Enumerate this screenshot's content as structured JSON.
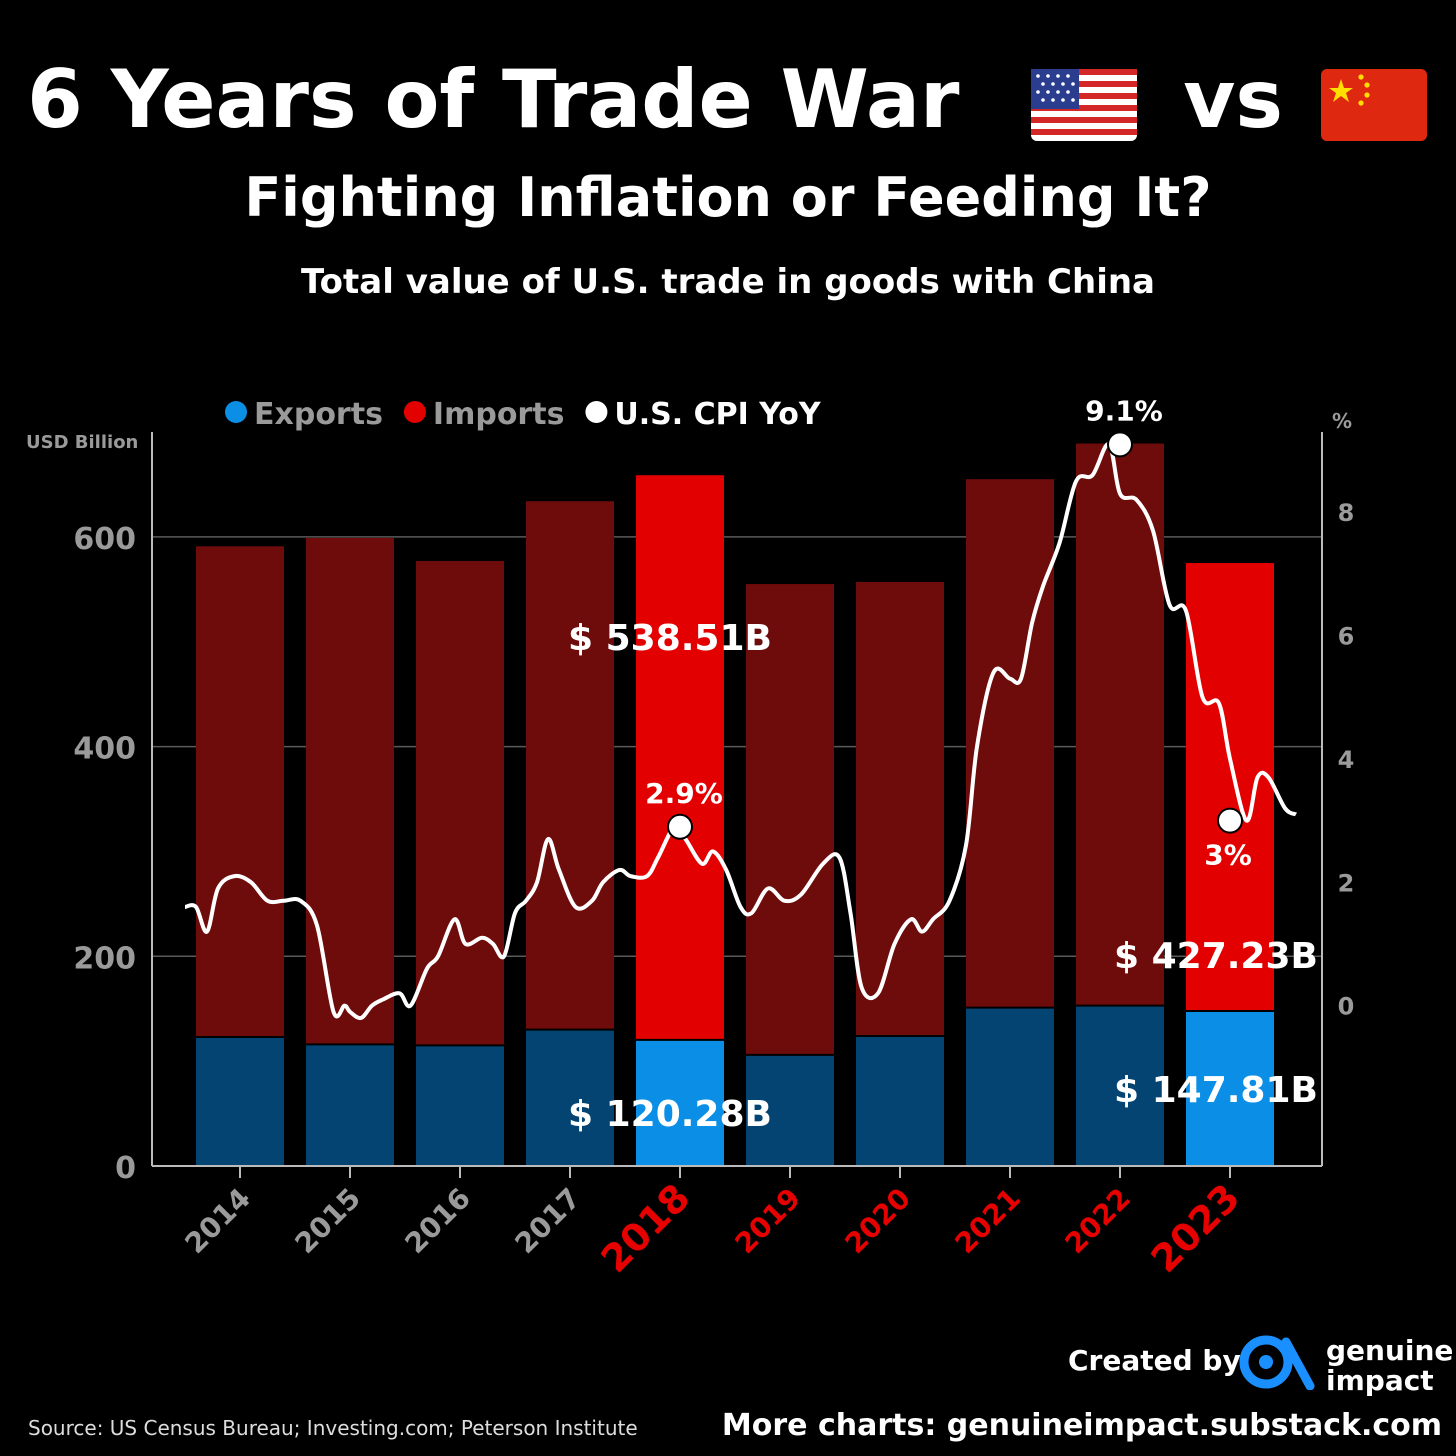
{
  "header": {
    "title": "6 Years of Trade War",
    "vs": "vs",
    "subtitle": "Fighting Inflation or Feeding It?",
    "chart_title": "Total value of U.S. trade in goods with China"
  },
  "footer": {
    "created_by": "Created by",
    "brand_line1": "genuine",
    "brand_line2": "impact",
    "source": "Source: US Census Bureau; Investing.com; Peterson Institute",
    "more_charts": "More charts: genuineimpact.substack.com"
  },
  "colors": {
    "exports_highlight": "#0a8ee6",
    "exports_dim": "#034472",
    "imports_highlight": "#e30000",
    "imports_dim": "#6e0b0b",
    "cpi_line": "#ffffff",
    "year_highlight": "#e60000",
    "year_normal": "#9a9a9a"
  },
  "chart_data": {
    "type": "bar",
    "stacked": true,
    "left_axis_label": "USD Billion",
    "right_axis_label": "%",
    "left_ticks": [
      0,
      200,
      400,
      600
    ],
    "right_ticks": [
      0,
      2,
      4,
      6,
      8
    ],
    "ylim": [
      0,
      700
    ],
    "y2lim": [
      -2.6,
      9.3
    ],
    "grid": true,
    "legend_position": "top-left",
    "legend": [
      {
        "label": "Exports",
        "color": "#0a8ee6",
        "text_color": "#9a9a9a"
      },
      {
        "label": "Imports",
        "color": "#e30000",
        "text_color": "#9a9a9a"
      },
      {
        "label": "U.S. CPI YoY",
        "color": "#ffffff",
        "text_color": "#ffffff"
      }
    ],
    "categories": [
      "2014",
      "2015",
      "2016",
      "2017",
      "2018",
      "2019",
      "2020",
      "2021",
      "2022",
      "2023"
    ],
    "category_highlight": [
      false,
      false,
      false,
      false,
      true,
      true,
      true,
      true,
      true,
      true
    ],
    "category_bold": [
      false,
      false,
      false,
      false,
      true,
      false,
      false,
      false,
      false,
      true
    ],
    "bar_highlight": [
      false,
      false,
      false,
      false,
      true,
      false,
      false,
      false,
      false,
      true
    ],
    "series": [
      {
        "name": "Exports",
        "values": [
          123,
          116,
          115,
          130,
          120.28,
          106,
          124,
          151,
          153,
          147.81
        ]
      },
      {
        "name": "Imports",
        "values": [
          468,
          483,
          462,
          504,
          538.51,
          449,
          433,
          504,
          536,
          427.23
        ]
      }
    ],
    "bar_labels": [
      {
        "year": "2018",
        "series": "Imports",
        "text": "$ 538.51B"
      },
      {
        "year": "2018",
        "series": "Exports",
        "text": "$ 120.28B"
      },
      {
        "year": "2023",
        "series": "Imports",
        "text": "$ 427.23B"
      },
      {
        "year": "2023",
        "series": "Exports",
        "text": "$ 147.81B"
      }
    ],
    "cpi_series": {
      "name": "U.S. CPI YoY",
      "x": [
        2013.5,
        2013.6,
        2013.7,
        2013.8,
        2013.95,
        2014.1,
        2014.25,
        2014.4,
        2014.55,
        2014.7,
        2014.85,
        2014.95,
        2015.0,
        2015.1,
        2015.2,
        2015.3,
        2015.45,
        2015.55,
        2015.7,
        2015.8,
        2015.95,
        2016.05,
        2016.2,
        2016.3,
        2016.4,
        2016.5,
        2016.6,
        2016.7,
        2016.8,
        2016.9,
        2017.05,
        2017.2,
        2017.3,
        2017.45,
        2017.55,
        2017.7,
        2017.8,
        2017.95,
        2018.05,
        2018.2,
        2018.3,
        2018.42,
        2018.55,
        2018.65,
        2018.8,
        2018.95,
        2019.1,
        2019.3,
        2019.45,
        2019.55,
        2019.65,
        2019.8,
        2019.95,
        2020.1,
        2020.2,
        2020.3,
        2020.45,
        2020.6,
        2020.7,
        2020.85,
        2021.0,
        2021.1,
        2021.2,
        2021.3,
        2021.45,
        2021.6,
        2021.75,
        2021.9,
        2022.0,
        2022.15,
        2022.3,
        2022.45,
        2022.6,
        2022.75,
        2022.9,
        2023.0,
        2023.15,
        2023.25,
        2023.35,
        2023.5,
        2023.6
      ],
      "values": [
        1.6,
        1.6,
        1.2,
        1.9,
        2.1,
        2.0,
        1.7,
        1.7,
        1.7,
        1.3,
        -0.1,
        0.0,
        -0.1,
        -0.2,
        0.0,
        0.1,
        0.2,
        0.0,
        0.6,
        0.8,
        1.4,
        1.0,
        1.1,
        1.0,
        0.8,
        1.5,
        1.7,
        2.0,
        2.7,
        2.2,
        1.6,
        1.7,
        2.0,
        2.2,
        2.1,
        2.1,
        2.4,
        2.9,
        2.7,
        2.3,
        2.5,
        2.2,
        1.6,
        1.5,
        1.9,
        1.7,
        1.8,
        2.3,
        2.4,
        1.5,
        0.3,
        0.2,
        1.0,
        1.4,
        1.2,
        1.4,
        1.7,
        2.6,
        4.2,
        5.4,
        5.3,
        5.3,
        6.2,
        6.8,
        7.5,
        8.5,
        8.6,
        9.1,
        8.3,
        8.2,
        7.7,
        6.5,
        6.4,
        5.0,
        4.9,
        4.0,
        3.0,
        3.7,
        3.7,
        3.2,
        3.1
      ],
      "annotations": [
        {
          "x": 2018.0,
          "value": 2.9,
          "label": "2.9%"
        },
        {
          "x": 2022.0,
          "value": 9.1,
          "label": "9.1%"
        },
        {
          "x": 2023.0,
          "value": 3.0,
          "label": "3%"
        }
      ]
    }
  }
}
